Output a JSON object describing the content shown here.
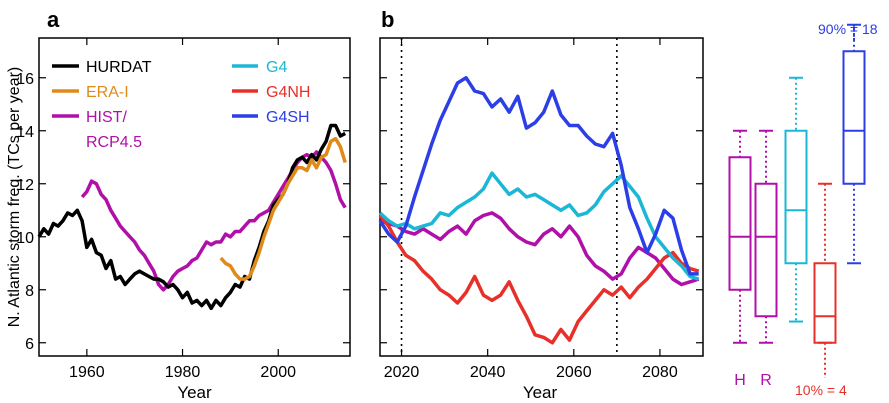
{
  "panels": {
    "a": {
      "letter": "a"
    },
    "b": {
      "letter": "b"
    }
  },
  "chart_data": [
    {
      "type": "line",
      "panel": "a",
      "xlabel": "Year",
      "ylabel": "N. Atlantic storm freq. (TCs per year)",
      "xlim": [
        1950,
        2015
      ],
      "ylim": [
        5.5,
        17.5
      ],
      "xticks": [
        1960,
        1980,
        2000
      ],
      "yticks": [
        6,
        8,
        10,
        12,
        14,
        16
      ],
      "grid": false,
      "legend_placement": "top-left",
      "series": [
        {
          "name": "HURDAT",
          "color": "#000000",
          "x": [
            1950,
            1951,
            1952,
            1953,
            1954,
            1955,
            1956,
            1957,
            1958,
            1959,
            1960,
            1961,
            1962,
            1963,
            1964,
            1965,
            1966,
            1967,
            1968,
            1969,
            1970,
            1971,
            1972,
            1973,
            1974,
            1975,
            1976,
            1977,
            1978,
            1979,
            1980,
            1981,
            1982,
            1983,
            1984,
            1985,
            1986,
            1987,
            1988,
            1989,
            1990,
            1991,
            1992,
            1993,
            1994,
            1995,
            1996,
            1997,
            1998,
            1999,
            2000,
            2001,
            2002,
            2003,
            2004,
            2005,
            2006,
            2007,
            2008,
            2009,
            2010,
            2011,
            2012,
            2013,
            2014
          ],
          "y": [
            10.0,
            10.3,
            10.1,
            10.5,
            10.4,
            10.6,
            10.9,
            10.8,
            11.0,
            10.6,
            9.6,
            9.9,
            9.4,
            9.3,
            8.8,
            9.1,
            8.4,
            8.5,
            8.2,
            8.4,
            8.6,
            8.7,
            8.6,
            8.5,
            8.4,
            8.4,
            8.3,
            8.1,
            8.2,
            8.0,
            7.7,
            7.9,
            7.5,
            7.6,
            7.4,
            7.6,
            7.3,
            7.6,
            7.4,
            7.7,
            7.9,
            8.2,
            8.1,
            8.5,
            8.4,
            9.1,
            9.6,
            10.2,
            10.6,
            11.2,
            11.4,
            11.6,
            12.0,
            12.6,
            12.9,
            13.0,
            12.8,
            13.1,
            12.9,
            13.3,
            13.6,
            14.2,
            14.2,
            13.8,
            13.9
          ]
        },
        {
          "name": "ERA-I",
          "color": "#e08a1a",
          "x": [
            1988,
            1989,
            1990,
            1991,
            1992,
            1993,
            1994,
            1995,
            1996,
            1997,
            1998,
            1999,
            2000,
            2001,
            2002,
            2003,
            2004,
            2005,
            2006,
            2007,
            2008,
            2009,
            2010,
            2011,
            2012,
            2013,
            2014
          ],
          "y": [
            9.2,
            9.0,
            8.9,
            8.6,
            8.4,
            8.4,
            8.5,
            8.9,
            9.4,
            10.0,
            10.5,
            11.0,
            11.3,
            11.6,
            12.0,
            12.3,
            12.6,
            12.6,
            12.5,
            12.9,
            12.6,
            13.0,
            13.1,
            13.6,
            13.7,
            13.4,
            12.8
          ]
        },
        {
          "name": "HIST/",
          "color": "#b010a8",
          "x": [
            1959,
            1960,
            1961,
            1962,
            1963,
            1964,
            1965,
            1966,
            1967,
            1968,
            1969,
            1970,
            1971,
            1972,
            1973,
            1974,
            1975,
            1976,
            1977,
            1978,
            1979,
            1980,
            1981,
            1982,
            1983,
            1984,
            1985,
            1986,
            1987,
            1988,
            1989,
            1990,
            1991,
            1992,
            1993,
            1994,
            1995,
            1996,
            1997,
            1998,
            1999,
            2000,
            2001,
            2002,
            2003,
            2004,
            2005,
            2006,
            2007,
            2008,
            2009,
            2010,
            2011,
            2012,
            2013,
            2014
          ],
          "y": [
            11.5,
            11.7,
            12.1,
            12.0,
            11.6,
            11.4,
            11.0,
            10.7,
            10.4,
            10.2,
            10.0,
            9.8,
            9.5,
            9.3,
            9.0,
            8.7,
            8.2,
            8.0,
            8.2,
            8.5,
            8.7,
            8.8,
            8.9,
            9.1,
            9.2,
            9.5,
            9.8,
            9.7,
            9.8,
            9.8,
            10.1,
            10.0,
            10.2,
            10.2,
            10.4,
            10.6,
            10.6,
            10.8,
            10.9,
            11.0,
            11.3,
            11.6,
            11.9,
            12.2,
            12.5,
            12.8,
            13.0,
            13.1,
            13.0,
            13.2,
            13.0,
            12.8,
            12.5,
            12.0,
            11.4,
            11.1
          ]
        }
      ],
      "extra_legend_label": "RCP4.5"
    },
    {
      "type": "line",
      "panel": "b",
      "xlabel": "Year",
      "xlim": [
        2015,
        2090
      ],
      "ylim": [
        5.5,
        17.5
      ],
      "xticks": [
        2020,
        2040,
        2060,
        2080
      ],
      "vlines": [
        2020,
        2070
      ],
      "grid": false,
      "legend_placement": "top-left",
      "series": [
        {
          "name": "G4",
          "color": "#1ab8d6",
          "x": [
            2015,
            2017,
            2019,
            2021,
            2023,
            2025,
            2027,
            2029,
            2031,
            2033,
            2035,
            2037,
            2039,
            2041,
            2043,
            2045,
            2047,
            2049,
            2051,
            2053,
            2055,
            2057,
            2059,
            2061,
            2063,
            2065,
            2067,
            2069,
            2071,
            2073,
            2075,
            2077,
            2079,
            2081,
            2083,
            2085,
            2087,
            2089
          ],
          "y": [
            10.9,
            10.6,
            10.4,
            10.5,
            10.3,
            10.4,
            10.5,
            10.9,
            10.8,
            11.1,
            11.3,
            11.5,
            11.8,
            12.4,
            12.0,
            11.6,
            11.8,
            11.5,
            11.6,
            11.4,
            11.2,
            11.0,
            11.2,
            10.8,
            10.9,
            11.2,
            11.7,
            12.0,
            12.3,
            11.9,
            11.5,
            10.7,
            10.0,
            9.6,
            9.2,
            8.9,
            8.5,
            8.4
          ]
        },
        {
          "name": "G4NH",
          "color": "#e8302a",
          "x": [
            2015,
            2017,
            2019,
            2021,
            2023,
            2025,
            2027,
            2029,
            2031,
            2033,
            2035,
            2037,
            2039,
            2041,
            2043,
            2045,
            2047,
            2049,
            2051,
            2053,
            2055,
            2057,
            2059,
            2061,
            2063,
            2065,
            2067,
            2069,
            2071,
            2073,
            2075,
            2077,
            2079,
            2081,
            2083,
            2085,
            2087,
            2089
          ],
          "y": [
            10.8,
            10.4,
            9.8,
            9.3,
            9.1,
            8.7,
            8.4,
            8.0,
            7.8,
            7.5,
            7.9,
            8.5,
            7.8,
            7.6,
            7.8,
            8.3,
            7.6,
            7.0,
            6.3,
            6.2,
            6.0,
            6.5,
            6.1,
            6.8,
            7.2,
            7.6,
            8.0,
            7.8,
            8.1,
            7.7,
            8.1,
            8.4,
            8.8,
            9.2,
            9.4,
            9.0,
            8.8,
            8.7
          ]
        },
        {
          "name": "G4SH",
          "color": "#2c3ee6",
          "x": [
            2015,
            2017,
            2019,
            2021,
            2023,
            2025,
            2027,
            2029,
            2031,
            2033,
            2035,
            2037,
            2039,
            2041,
            2043,
            2045,
            2047,
            2049,
            2051,
            2053,
            2055,
            2057,
            2059,
            2061,
            2063,
            2065,
            2067,
            2069,
            2071,
            2073,
            2075,
            2077,
            2079,
            2081,
            2083,
            2085,
            2087,
            2089
          ],
          "y": [
            10.6,
            10.1,
            9.8,
            10.4,
            11.5,
            12.5,
            13.5,
            14.4,
            15.1,
            15.8,
            16.0,
            15.5,
            15.4,
            14.9,
            15.2,
            14.7,
            15.3,
            14.1,
            14.3,
            14.7,
            15.5,
            14.6,
            14.2,
            14.2,
            13.8,
            13.5,
            13.4,
            13.9,
            12.7,
            11.1,
            10.3,
            9.4,
            10.1,
            11.0,
            10.7,
            9.5,
            8.6,
            8.6
          ]
        },
        {
          "name": "HIST/RCP4.5",
          "color": "#b010a8",
          "x": [
            2015,
            2017,
            2019,
            2021,
            2023,
            2025,
            2027,
            2029,
            2031,
            2033,
            2035,
            2037,
            2039,
            2041,
            2043,
            2045,
            2047,
            2049,
            2051,
            2053,
            2055,
            2057,
            2059,
            2061,
            2063,
            2065,
            2067,
            2069,
            2071,
            2073,
            2075,
            2077,
            2079,
            2081,
            2083,
            2085,
            2087,
            2089
          ],
          "y": [
            10.6,
            10.5,
            10.4,
            10.2,
            10.1,
            10.3,
            10.1,
            9.9,
            10.2,
            10.4,
            10.1,
            10.6,
            10.8,
            10.9,
            10.7,
            10.3,
            10.0,
            9.8,
            9.7,
            10.1,
            10.3,
            10.0,
            10.4,
            10.0,
            9.3,
            8.9,
            8.7,
            8.4,
            8.6,
            9.2,
            9.6,
            9.4,
            9.2,
            8.8,
            8.4,
            8.2,
            8.3,
            8.4
          ]
        }
      ]
    },
    {
      "type": "box",
      "panel": "b-box",
      "ylim": [
        5.5,
        17.5
      ],
      "boxes": [
        {
          "label": "H",
          "color": "#b010a8",
          "whisker_low": 6,
          "q1": 8,
          "median": 10,
          "q3": 13,
          "whisker_high": 14,
          "style": "dotted-whisker"
        },
        {
          "label": "R",
          "color": "#b010a8",
          "whisker_low": 6,
          "q1": 7,
          "median": 10,
          "q3": 12,
          "whisker_high": 14,
          "style": "dotted-whisker"
        },
        {
          "label": "",
          "color": "#1ab8d6",
          "whisker_low": 6.8,
          "q1": 9,
          "median": 11,
          "q3": 14,
          "whisker_high": 16,
          "style": "dotted-whisker"
        },
        {
          "label": "",
          "color": "#e8302a",
          "whisker_low": 6,
          "q1": 6,
          "median": 7,
          "q3": 9,
          "whisker_high": 12,
          "style": "dotted-whisker"
        },
        {
          "label": "",
          "color": "#2c3ee6",
          "whisker_low": 9,
          "q1": 12,
          "median": 14,
          "q3": 17,
          "whisker_high": 18,
          "style": "dotted-whisker"
        }
      ],
      "annotations": [
        {
          "text": "90% = 18",
          "color": "#2c3ee6"
        },
        {
          "text": "10% = 4",
          "color": "#e8302a"
        }
      ]
    }
  ]
}
